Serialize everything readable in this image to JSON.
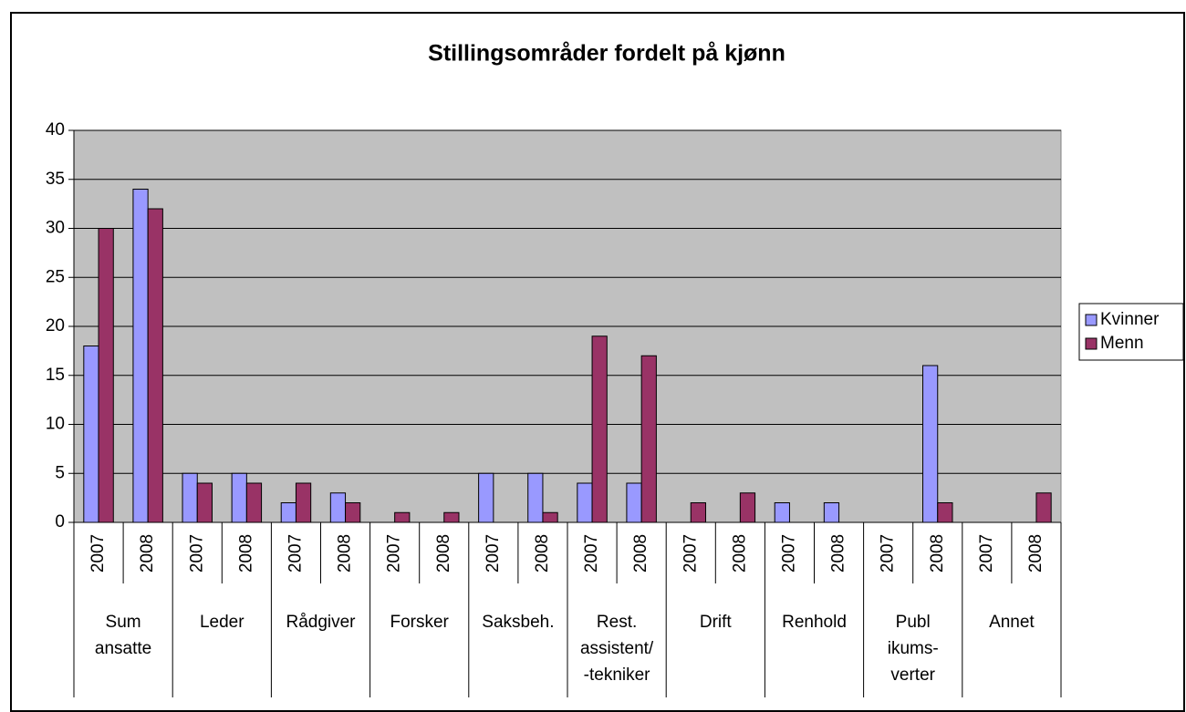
{
  "chart_data": {
    "type": "bar",
    "title": "Stillingsområder fordelt på kjønn",
    "categories": [
      "2007",
      "2008",
      "2007",
      "2008",
      "2007",
      "2008",
      "2007",
      "2008",
      "2007",
      "2008",
      "2007",
      "2008",
      "2007",
      "2008",
      "2007",
      "2008",
      "2007",
      "2008",
      "2007",
      "2008"
    ],
    "groups": [
      [
        "Sum",
        "ansatte"
      ],
      [
        "Leder"
      ],
      [
        "Rådgiver"
      ],
      [
        "Forsker"
      ],
      [
        "Saksbeh."
      ],
      [
        "Rest.",
        "assistent/",
        "-tekniker"
      ],
      [
        "Drift"
      ],
      [
        "Renhold"
      ],
      [
        "Publ",
        "ikums-",
        "verter"
      ],
      [
        "Annet"
      ]
    ],
    "series": [
      {
        "name": "Kvinner",
        "color": "#9999ff",
        "values": [
          18,
          34,
          5,
          5,
          2,
          3,
          0,
          0,
          5,
          5,
          4,
          4,
          0,
          0,
          2,
          2,
          0,
          16,
          0,
          0
        ]
      },
      {
        "name": "Menn",
        "color": "#993366",
        "values": [
          30,
          32,
          4,
          4,
          4,
          2,
          1,
          1,
          0,
          1,
          19,
          17,
          2,
          3,
          0,
          0,
          0,
          2,
          0,
          3
        ]
      }
    ],
    "ylim": [
      0,
      40
    ],
    "yticks": [
      0,
      5,
      10,
      15,
      20,
      25,
      30,
      35,
      40
    ],
    "grid": true,
    "legend": "right",
    "plot_background": "#c0c0c0"
  }
}
